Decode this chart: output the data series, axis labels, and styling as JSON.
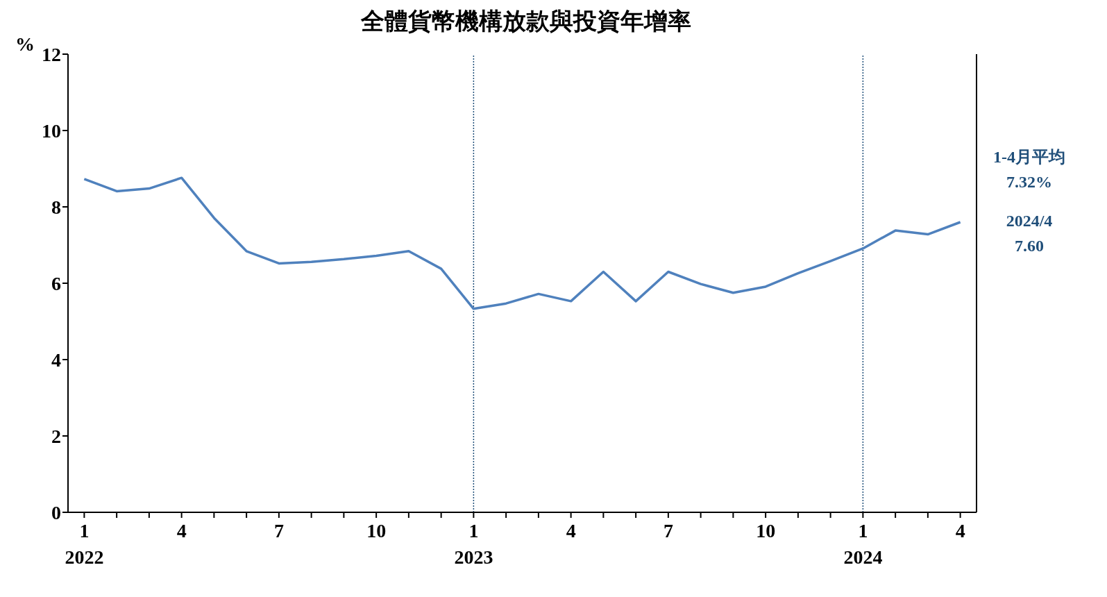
{
  "chart_data": {
    "type": "line",
    "title": "全體貨幣機構放款與投資年增率",
    "ylabel": "%",
    "categories": [
      "1\n2022",
      null,
      null,
      "4",
      null,
      null,
      "7",
      null,
      null,
      "10",
      null,
      null,
      "1\n2023",
      null,
      null,
      "4",
      null,
      null,
      "7",
      null,
      null,
      "10",
      null,
      null,
      "1\n2024",
      null,
      null,
      "4"
    ],
    "series": [
      {
        "color": "#4f81bd",
        "values": [
          8.73,
          8.41,
          8.48,
          8.76,
          7.71,
          6.84,
          6.52,
          6.56,
          6.63,
          6.72,
          6.84,
          6.38,
          5.33,
          5.47,
          5.72,
          5.53,
          6.3,
          5.53,
          6.3,
          5.98,
          5.75,
          5.91,
          6.26,
          6.58,
          6.91,
          7.38,
          7.28,
          7.6
        ]
      }
    ],
    "ylim": [
      0,
      12
    ],
    "yticks": [
      0,
      2,
      4,
      6,
      8,
      10,
      12
    ],
    "marker": "none",
    "line_style": "solid",
    "ref_lines": [
      {
        "axis": "x",
        "value": "1\n2023",
        "color": "#1f4e79",
        "line_style": "dotted"
      },
      {
        "axis": "x",
        "value": "1\n2024",
        "color": "#1f4e79",
        "line_style": "dotted"
      }
    ],
    "annotations": [
      "1-4月平均\n7.32%",
      "2024/4\n7.60"
    ]
  }
}
